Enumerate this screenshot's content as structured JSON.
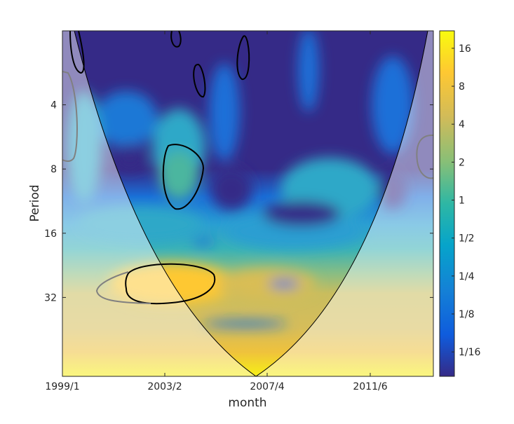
{
  "chart_data": {
    "type": "heatmap",
    "title": "",
    "xlabel": "month",
    "ylabel": "Period",
    "x_tick_labels": [
      "1999/1",
      "2003/2",
      "2007/4",
      "2011/6"
    ],
    "y_scale": "log2",
    "y_tick_labels": [
      "4",
      "8",
      "16",
      "32"
    ],
    "y_range": [
      1.8,
      75
    ],
    "colorbar": {
      "scale": "log2",
      "tick_labels": [
        "16",
        "8",
        "4",
        "2",
        "1",
        "1/2",
        "1/4",
        "1/8",
        "1/16"
      ],
      "range": [
        0.04,
        22
      ],
      "colormap": [
        "#352a87",
        "#0f5cdd",
        "#1481d6",
        "#06a4ca",
        "#2eb7a4",
        "#87bf77",
        "#d1bb59",
        "#fec832",
        "#f9fb0e"
      ]
    },
    "cone_of_influence": true,
    "contours": {
      "significant_color": "#000000",
      "edge_color": "#808080"
    }
  }
}
